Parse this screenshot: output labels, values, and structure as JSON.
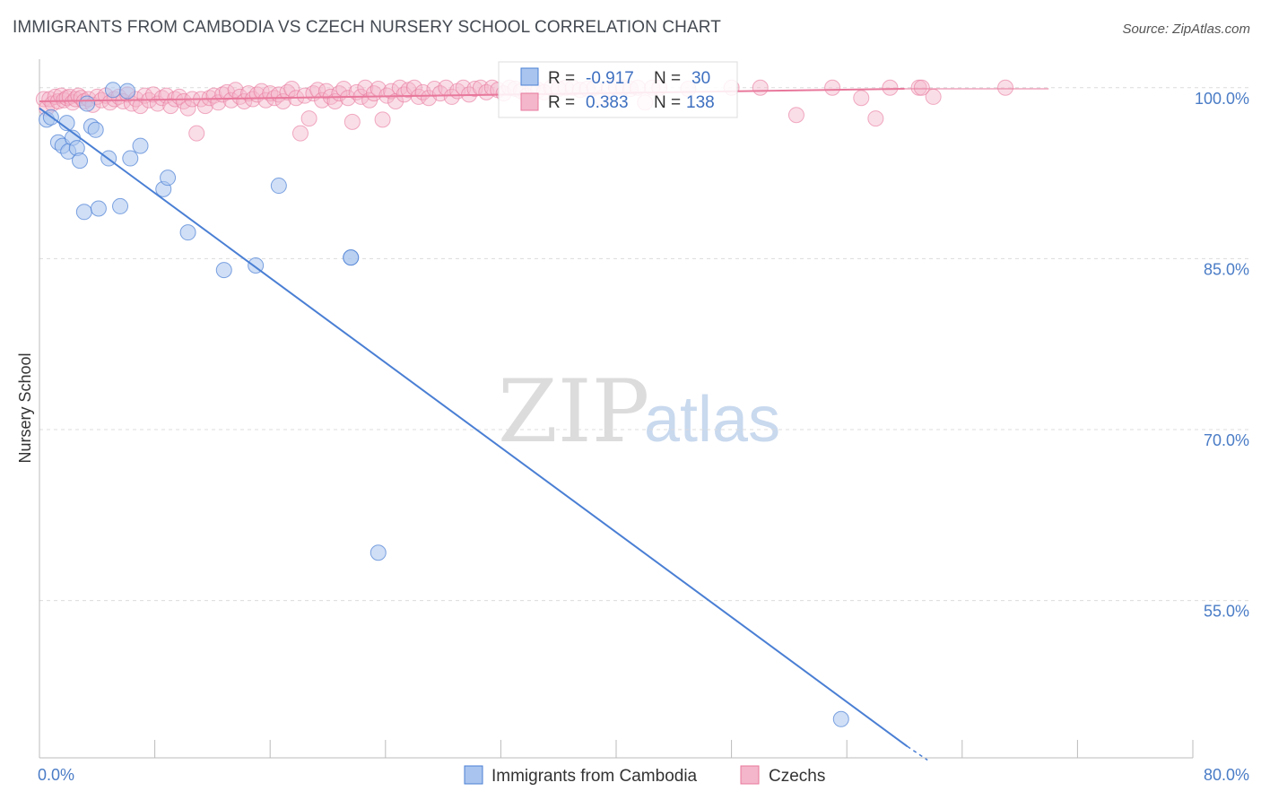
{
  "title": "IMMIGRANTS FROM CAMBODIA VS CZECH NURSERY SCHOOL CORRELATION CHART",
  "source": "Source: ZipAtlas.com",
  "watermark": {
    "zip": "ZIP",
    "atlas": "atlas"
  },
  "colors": {
    "cambodia": "#4a7fd4",
    "czechs": "#e8789c",
    "cambodia_fill": "#a9c4ee",
    "czechs_fill": "#f4b6ca",
    "tick": "#4a7cc6"
  },
  "stats": [
    {
      "series": "Immigrants from Cambodia",
      "r_label": "R =",
      "r": "-0.917",
      "n_label": "N =",
      "n": "30"
    },
    {
      "series": "Czechs",
      "r_label": "R =",
      "r": "0.383",
      "n_label": "N =",
      "n": "138"
    }
  ],
  "chart_data": {
    "type": "scatter",
    "title": "IMMIGRANTS FROM CAMBODIA VS CZECH NURSERY SCHOOL CORRELATION CHART",
    "xlabel": "",
    "ylabel": "Nursery School",
    "xlim": [
      0,
      80
    ],
    "ylim": [
      41.2,
      102.5
    ],
    "x_tick_labels": [
      "0.0%",
      "80.0%"
    ],
    "y_ticks": [
      100,
      85,
      70,
      55
    ],
    "y_tick_labels": [
      "100.0%",
      "85.0%",
      "70.0%",
      "55.0%"
    ],
    "legend": [
      "Immigrants from Cambodia",
      "Czechs"
    ],
    "series": [
      {
        "name": "Immigrants from Cambodia",
        "r": -0.917,
        "n": 30,
        "trend": {
          "x": [
            0,
            60.2
          ],
          "y": [
            98.2,
            42.2
          ],
          "dash_to": [
            61.6,
            41.0
          ]
        },
        "points": [
          [
            0.5,
            97.2
          ],
          [
            0.8,
            97.4
          ],
          [
            1.3,
            95.2
          ],
          [
            1.6,
            94.9
          ],
          [
            1.9,
            96.9
          ],
          [
            2.0,
            94.4
          ],
          [
            2.3,
            95.6
          ],
          [
            2.6,
            94.7
          ],
          [
            2.8,
            93.6
          ],
          [
            3.1,
            89.1
          ],
          [
            3.3,
            98.6
          ],
          [
            3.6,
            96.6
          ],
          [
            3.9,
            96.3
          ],
          [
            4.1,
            89.4
          ],
          [
            4.8,
            93.8
          ],
          [
            5.1,
            99.8
          ],
          [
            5.6,
            89.6
          ],
          [
            6.1,
            99.7
          ],
          [
            6.3,
            93.8
          ],
          [
            7.0,
            94.9
          ],
          [
            8.6,
            91.1
          ],
          [
            8.9,
            92.1
          ],
          [
            10.3,
            87.3
          ],
          [
            12.8,
            84.0
          ],
          [
            15.0,
            84.4
          ],
          [
            16.6,
            91.4
          ],
          [
            21.6,
            85.1
          ],
          [
            21.6,
            85.1
          ],
          [
            23.5,
            59.2
          ],
          [
            55.6,
            44.6
          ]
        ]
      },
      {
        "name": "Czechs",
        "r": 0.383,
        "n": 138,
        "trend": {
          "x": [
            0,
            60
          ],
          "y": [
            98.8,
            99.9
          ]
        },
        "points": [
          [
            0.3,
            99.0
          ],
          [
            0.5,
            98.2
          ],
          [
            0.7,
            99.0
          ],
          [
            0.9,
            98.6
          ],
          [
            1.1,
            99.2
          ],
          [
            1.3,
            98.8
          ],
          [
            1.5,
            99.3
          ],
          [
            1.7,
            98.9
          ],
          [
            1.9,
            99.1
          ],
          [
            2.1,
            99.2
          ],
          [
            2.3,
            98.7
          ],
          [
            2.5,
            99.0
          ],
          [
            2.7,
            99.3
          ],
          [
            2.9,
            99.1
          ],
          [
            3.1,
            98.8
          ],
          [
            3.4,
            99.0
          ],
          [
            3.7,
            98.5
          ],
          [
            4.0,
            99.2
          ],
          [
            4.3,
            98.9
          ],
          [
            4.6,
            99.3
          ],
          [
            4.9,
            98.7
          ],
          [
            5.2,
            99.0
          ],
          [
            5.5,
            99.2
          ],
          [
            5.8,
            98.8
          ],
          [
            6.1,
            99.4
          ],
          [
            6.4,
            98.6
          ],
          [
            6.7,
            99.0
          ],
          [
            7.0,
            98.4
          ],
          [
            7.3,
            99.3
          ],
          [
            7.6,
            98.9
          ],
          [
            7.9,
            99.4
          ],
          [
            8.2,
            98.6
          ],
          [
            8.5,
            99.1
          ],
          [
            8.8,
            99.3
          ],
          [
            9.1,
            98.4
          ],
          [
            9.4,
            99.0
          ],
          [
            9.7,
            99.2
          ],
          [
            10.0,
            98.8
          ],
          [
            10.3,
            98.2
          ],
          [
            10.6,
            99.0
          ],
          [
            10.9,
            96.0
          ],
          [
            11.2,
            99.0
          ],
          [
            11.5,
            98.4
          ],
          [
            11.8,
            99.1
          ],
          [
            12.1,
            99.3
          ],
          [
            12.4,
            98.7
          ],
          [
            12.7,
            99.4
          ],
          [
            13.0,
            99.6
          ],
          [
            13.3,
            98.9
          ],
          [
            13.6,
            99.8
          ],
          [
            13.9,
            99.2
          ],
          [
            14.2,
            98.8
          ],
          [
            14.5,
            99.5
          ],
          [
            14.8,
            99.0
          ],
          [
            15.1,
            99.4
          ],
          [
            15.4,
            99.7
          ],
          [
            15.7,
            98.9
          ],
          [
            16.0,
            99.5
          ],
          [
            16.3,
            99.1
          ],
          [
            16.6,
            99.4
          ],
          [
            16.9,
            98.8
          ],
          [
            17.2,
            99.6
          ],
          [
            17.5,
            99.9
          ],
          [
            17.8,
            99.1
          ],
          [
            18.1,
            96.0
          ],
          [
            18.4,
            99.3
          ],
          [
            18.7,
            97.3
          ],
          [
            19.0,
            99.5
          ],
          [
            19.3,
            99.8
          ],
          [
            19.6,
            98.9
          ],
          [
            19.9,
            99.7
          ],
          [
            20.2,
            99.2
          ],
          [
            20.5,
            98.8
          ],
          [
            20.8,
            99.5
          ],
          [
            21.1,
            99.9
          ],
          [
            21.4,
            99.1
          ],
          [
            21.7,
            97.0
          ],
          [
            22.0,
            99.6
          ],
          [
            22.3,
            99.2
          ],
          [
            22.6,
            100.0
          ],
          [
            22.9,
            98.9
          ],
          [
            23.2,
            99.5
          ],
          [
            23.5,
            99.9
          ],
          [
            23.8,
            97.2
          ],
          [
            24.1,
            99.3
          ],
          [
            24.4,
            99.7
          ],
          [
            24.7,
            98.8
          ],
          [
            25.0,
            100.0
          ],
          [
            25.3,
            99.4
          ],
          [
            25.6,
            99.8
          ],
          [
            26.0,
            100.0
          ],
          [
            26.3,
            99.2
          ],
          [
            26.6,
            99.6
          ],
          [
            27.0,
            99.1
          ],
          [
            27.4,
            99.9
          ],
          [
            27.8,
            99.5
          ],
          [
            28.2,
            100.0
          ],
          [
            28.6,
            99.2
          ],
          [
            29.0,
            99.7
          ],
          [
            29.4,
            100.0
          ],
          [
            29.8,
            99.4
          ],
          [
            30.2,
            99.9
          ],
          [
            30.6,
            100.0
          ],
          [
            31.0,
            99.6
          ],
          [
            31.4,
            100.0
          ],
          [
            31.8,
            99.8
          ],
          [
            32.2,
            99.5
          ],
          [
            32.6,
            100.0
          ],
          [
            33.0,
            99.9
          ],
          [
            33.4,
            99.7
          ],
          [
            33.8,
            99.3
          ],
          [
            34.2,
            100.0
          ],
          [
            34.6,
            99.8
          ],
          [
            35.0,
            99.6
          ],
          [
            35.5,
            100.0
          ],
          [
            36.0,
            99.9
          ],
          [
            36.5,
            100.0
          ],
          [
            37.0,
            100.0
          ],
          [
            37.5,
            99.8
          ],
          [
            38.0,
            99.9
          ],
          [
            38.5,
            100.0
          ],
          [
            39.0,
            99.1
          ],
          [
            39.5,
            99.9
          ],
          [
            40.0,
            100.0
          ],
          [
            40.5,
            100.0
          ],
          [
            41.0,
            99.9
          ],
          [
            41.5,
            100.0
          ],
          [
            42.0,
            98.7
          ],
          [
            42.5,
            100.0
          ],
          [
            43.0,
            100.0
          ],
          [
            45.0,
            99.9
          ],
          [
            48.0,
            100.0
          ],
          [
            50.0,
            100.0
          ],
          [
            52.5,
            97.6
          ],
          [
            55.0,
            100.0
          ],
          [
            57.0,
            99.1
          ],
          [
            59.0,
            100.0
          ],
          [
            61.0,
            100.0
          ],
          [
            62.0,
            99.2
          ],
          [
            67.0,
            100.0
          ],
          [
            61.2,
            100.0
          ],
          [
            58.0,
            97.3
          ]
        ]
      }
    ]
  }
}
